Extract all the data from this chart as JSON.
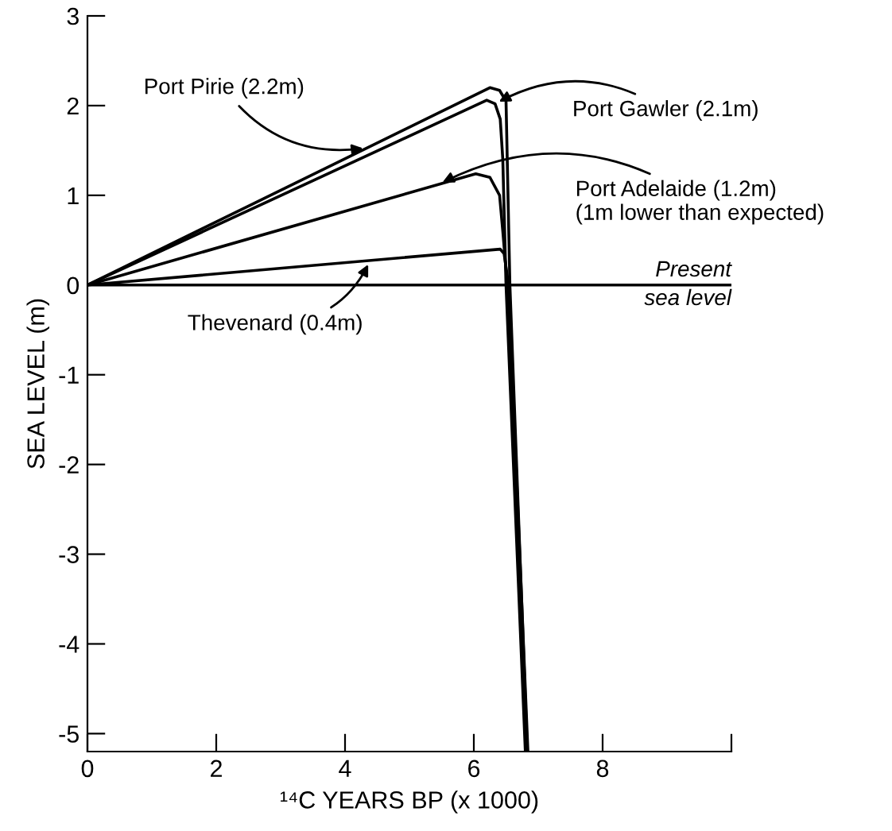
{
  "chart_data": {
    "type": "line",
    "xlabel": "¹⁴C YEARS BP (x 1000)",
    "ylabel": "SEA LEVEL (m)",
    "xlim": [
      0,
      10
    ],
    "xticks": [
      0,
      2,
      4,
      6,
      8,
      {
        "value": 10,
        "label": null
      }
    ],
    "ylim": [
      -5.2,
      3
    ],
    "yticks": [
      -5,
      -4,
      -3,
      -2,
      -1,
      0,
      1,
      2,
      3
    ],
    "grid": false,
    "marker": "none",
    "line_style": "solid",
    "series": [
      {
        "color": "#000000",
        "x": [
          0,
          6.25,
          6.4,
          6.5,
          6.56,
          6.83
        ],
        "values": [
          0,
          2.2,
          2.17,
          2.05,
          0,
          -5.2
        ]
      },
      {
        "color": "#000000",
        "x": [
          0,
          6.2,
          6.33,
          6.41,
          6.45,
          6.5,
          6.8
        ],
        "values": [
          0,
          2.06,
          2.02,
          1.85,
          1.4,
          0,
          -5.2
        ]
      },
      {
        "color": "#000000",
        "x": [
          0,
          6.03,
          6.25,
          6.4,
          6.45,
          6.52,
          6.82
        ],
        "values": [
          0,
          1.24,
          1.2,
          1.0,
          0.6,
          0,
          -5.2
        ]
      },
      {
        "color": "#000000",
        "x": [
          0,
          6.41,
          6.47,
          6.5,
          6.54,
          6.84
        ],
        "values": [
          0,
          0.4,
          0.35,
          0.2,
          0,
          -5.2
        ]
      }
    ],
    "ref_lines": [
      {
        "axis": "y",
        "value": 0,
        "label": "Present\nsea level",
        "color": "#000000"
      }
    ],
    "annotations": [
      {
        "text": "Port Pirie (2.2m)",
        "x": 4.35,
        "y": 1.53
      },
      {
        "text": "Port Gawler (2.1m)",
        "x": 6.33,
        "y": 2.02
      },
      {
        "text": "Port Adelaide (1.2m)\n(1m lower than expected)",
        "x": 5.45,
        "y": 1.12
      },
      {
        "text": "Thevenard (0.4m)",
        "x": 4.39,
        "y": 0.274
      }
    ]
  }
}
